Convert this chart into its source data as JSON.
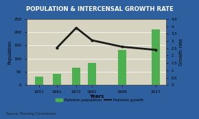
{
  "years": [
    1951,
    1961,
    1972,
    1981,
    1998,
    2017
  ],
  "population": [
    33,
    42,
    65,
    84,
    133,
    212
  ],
  "growth_rate": [
    null,
    2.54,
    3.9,
    3.05,
    2.61,
    2.4
  ],
  "bar_color": "#4caf50",
  "line_color": "#1a1a1a",
  "title": "POPULATION & INTERCENSAL GROWTH RATE",
  "title_bg": "#2e5f9e",
  "title_color": "white",
  "bg_color": "#d6d4c0",
  "plot_bg": "#d6d4c0",
  "border_color": "#2e5f9e",
  "xlabel": "Years",
  "ylabel_left": "Population",
  "ylabel_right": "Growth rate",
  "ylim_left": [
    0,
    250
  ],
  "ylim_right": [
    0,
    4.5
  ],
  "yticks_left": [
    0,
    50,
    100,
    150,
    200,
    250
  ],
  "yticks_right": [
    0,
    0.5,
    1.0,
    1.5,
    2.0,
    2.5,
    3.0,
    3.5,
    4.0,
    4.5
  ],
  "source_text": "Source: Planning Commission",
  "legend_pop": "Pakistan population",
  "legend_growth": "Pakistan growth"
}
